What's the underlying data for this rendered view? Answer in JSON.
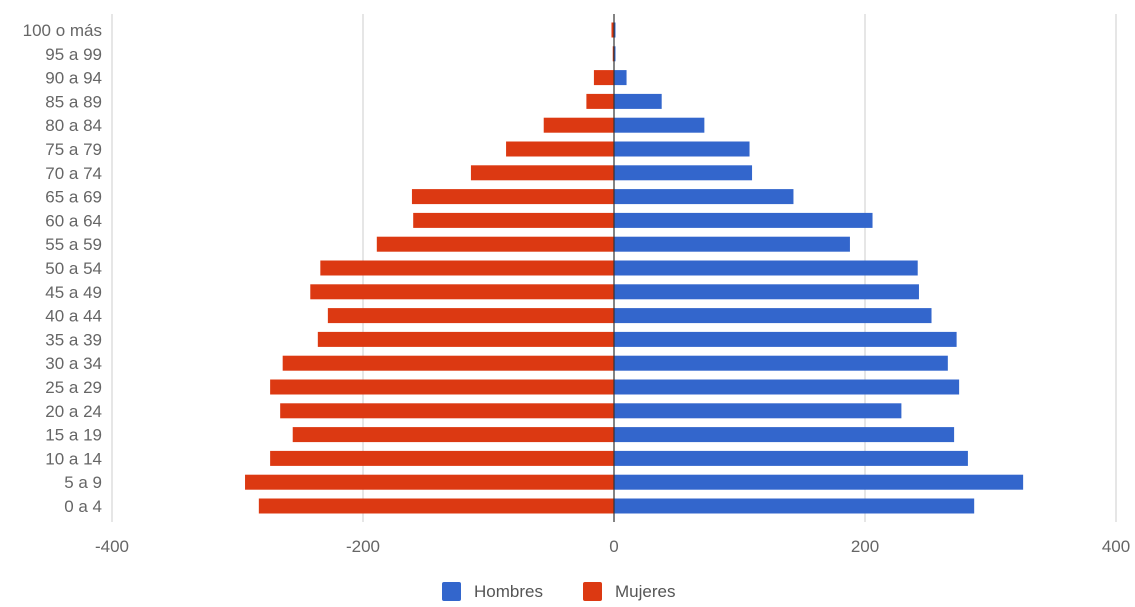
{
  "chart_data": {
    "type": "bar",
    "orientation": "horizontal",
    "categories": [
      "100 o más",
      "95 a 99",
      "90 a 94",
      "85 a 89",
      "80 a 84",
      "75 a 79",
      "70 a 74",
      "65 a 69",
      "60 a 64",
      "55 a 59",
      "50 a 54",
      "45 a 49",
      "40 a 44",
      "35 a 39",
      "30 a 34",
      "25 a 29",
      "20 a 24",
      "15 a 19",
      "10 a 14",
      "5 a 9",
      "0 a 4"
    ],
    "series": [
      {
        "name": "Hombres",
        "color": "#3366cc",
        "values": [
          1,
          1,
          10,
          38,
          72,
          108,
          110,
          143,
          206,
          188,
          242,
          243,
          253,
          273,
          266,
          275,
          229,
          271,
          282,
          326,
          287
        ]
      },
      {
        "name": "Mujeres",
        "color": "#dc3912",
        "values": [
          -2,
          -1,
          -16,
          -22,
          -56,
          -86,
          -114,
          -161,
          -160,
          -189,
          -234,
          -242,
          -228,
          -236,
          -264,
          -274,
          -266,
          -256,
          -274,
          -294,
          -283
        ]
      }
    ],
    "xlim": [
      -400,
      400
    ],
    "xticks": [
      "-400",
      "-200",
      "0",
      "200",
      "400"
    ],
    "grid": true,
    "legend_position": "bottom"
  }
}
